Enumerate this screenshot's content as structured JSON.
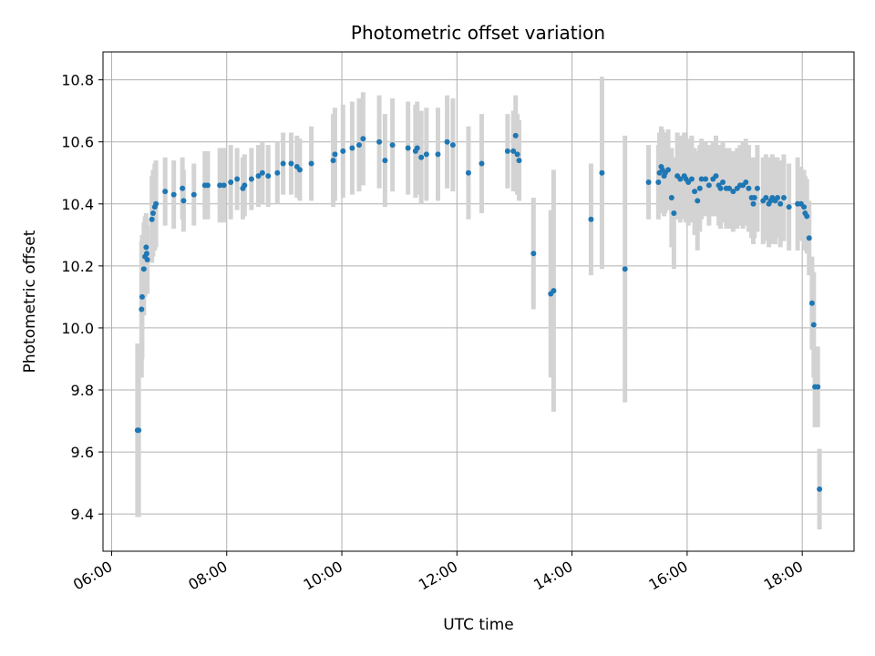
{
  "chart_data": {
    "type": "scatter",
    "title": "Photometric offset variation",
    "xlabel": "UTC time",
    "ylabel": "Photometric offset",
    "x_unit": "hours UTC",
    "xlim": [
      5.85,
      18.9
    ],
    "ylim": [
      9.28,
      10.89
    ],
    "x_ticks": [
      6,
      8,
      10,
      12,
      14,
      16,
      18
    ],
    "x_tick_labels": [
      "06:00",
      "08:00",
      "10:00",
      "12:00",
      "14:00",
      "16:00",
      "18:00"
    ],
    "y_ticks": [
      9.4,
      9.6,
      9.8,
      10.0,
      10.2,
      10.4,
      10.6,
      10.8
    ],
    "y_tick_labels": [
      "9.4",
      "9.6",
      "9.8",
      "10.0",
      "10.2",
      "10.4",
      "10.6",
      "10.8"
    ],
    "grid": true,
    "legend": "none",
    "colors": {
      "points": "#1f77b4",
      "error_bars": "#d3d3d3",
      "grid": "#b0b0b0"
    },
    "series": [
      {
        "x": [
          6.45,
          6.47,
          6.52,
          6.53,
          6.56,
          6.58,
          6.6,
          6.61,
          6.62,
          6.7,
          6.72,
          6.75,
          6.77,
          6.93,
          7.08,
          7.23,
          7.25,
          7.43,
          7.62,
          7.67,
          7.88,
          7.95,
          8.07,
          8.18,
          8.28,
          8.31,
          8.43,
          8.55,
          8.62,
          8.72,
          8.88,
          8.98,
          9.12,
          9.22,
          9.27,
          9.47,
          9.85,
          9.88,
          10.02,
          10.18,
          10.3,
          10.37,
          10.65,
          10.75,
          10.88,
          11.15,
          11.28,
          11.31,
          11.38,
          11.47,
          11.67,
          11.83,
          11.93,
          12.2,
          12.43,
          12.88,
          12.98,
          13.02,
          13.05,
          13.08,
          13.33,
          13.63,
          13.68,
          14.33,
          14.52,
          14.92,
          15.33,
          15.5,
          15.52,
          15.55,
          15.57,
          15.6,
          15.62,
          15.67,
          15.73,
          15.77,
          15.83,
          15.88,
          15.95,
          15.98,
          16.02,
          16.08,
          16.13,
          16.18,
          16.22,
          16.25,
          16.32,
          16.38,
          16.45,
          16.5,
          16.55,
          16.58,
          16.62,
          16.68,
          16.73,
          16.8,
          16.87,
          16.92,
          16.97,
          17.02,
          17.07,
          17.12,
          17.15,
          17.17,
          17.22,
          17.32,
          17.37,
          17.42,
          17.45,
          17.48,
          17.53,
          17.57,
          17.62,
          17.68,
          17.77,
          17.92,
          17.98,
          18.03,
          18.05,
          18.08,
          18.12,
          18.17,
          18.2,
          18.22,
          18.27,
          18.3
        ],
        "y": [
          9.67,
          9.67,
          10.06,
          10.1,
          10.19,
          10.23,
          10.26,
          10.24,
          10.22,
          10.35,
          10.37,
          10.39,
          10.4,
          10.44,
          10.43,
          10.45,
          10.41,
          10.43,
          10.46,
          10.46,
          10.46,
          10.46,
          10.47,
          10.48,
          10.45,
          10.46,
          10.48,
          10.49,
          10.5,
          10.49,
          10.5,
          10.53,
          10.53,
          10.52,
          10.51,
          10.53,
          10.54,
          10.56,
          10.57,
          10.58,
          10.59,
          10.61,
          10.6,
          10.54,
          10.59,
          10.58,
          10.57,
          10.58,
          10.55,
          10.56,
          10.56,
          10.6,
          10.59,
          10.5,
          10.53,
          10.57,
          10.57,
          10.62,
          10.56,
          10.54,
          10.24,
          10.11,
          10.12,
          10.35,
          10.5,
          10.19,
          10.47,
          10.47,
          10.5,
          10.52,
          10.51,
          10.49,
          10.5,
          10.51,
          10.42,
          10.37,
          10.49,
          10.48,
          10.49,
          10.48,
          10.47,
          10.48,
          10.44,
          10.41,
          10.45,
          10.48,
          10.48,
          10.46,
          10.48,
          10.49,
          10.46,
          10.45,
          10.47,
          10.45,
          10.45,
          10.44,
          10.45,
          10.46,
          10.46,
          10.47,
          10.45,
          10.42,
          10.4,
          10.42,
          10.45,
          10.41,
          10.42,
          10.4,
          10.41,
          10.42,
          10.41,
          10.42,
          10.4,
          10.42,
          10.39,
          10.4,
          10.4,
          10.39,
          10.37,
          10.36,
          10.29,
          10.08,
          10.01,
          9.81,
          9.81,
          9.48
        ],
        "error": [
          0.28,
          0.28,
          0.22,
          0.2,
          0.15,
          0.13,
          0.11,
          0.11,
          0.11,
          0.14,
          0.14,
          0.14,
          0.14,
          0.11,
          0.11,
          0.1,
          0.1,
          0.1,
          0.11,
          0.11,
          0.12,
          0.12,
          0.12,
          0.1,
          0.1,
          0.1,
          0.1,
          0.1,
          0.1,
          0.1,
          0.1,
          0.1,
          0.1,
          0.1,
          0.1,
          0.12,
          0.15,
          0.15,
          0.15,
          0.15,
          0.15,
          0.15,
          0.15,
          0.15,
          0.15,
          0.15,
          0.15,
          0.15,
          0.15,
          0.15,
          0.15,
          0.15,
          0.15,
          0.15,
          0.16,
          0.12,
          0.13,
          0.13,
          0.13,
          0.13,
          0.18,
          0.27,
          0.39,
          0.18,
          0.31,
          0.43,
          0.12,
          0.12,
          0.13,
          0.13,
          0.13,
          0.13,
          0.13,
          0.13,
          0.16,
          0.18,
          0.14,
          0.14,
          0.14,
          0.14,
          0.14,
          0.14,
          0.14,
          0.16,
          0.14,
          0.13,
          0.12,
          0.13,
          0.12,
          0.13,
          0.13,
          0.13,
          0.13,
          0.13,
          0.13,
          0.13,
          0.13,
          0.13,
          0.14,
          0.14,
          0.14,
          0.13,
          0.13,
          0.13,
          0.14,
          0.14,
          0.14,
          0.14,
          0.14,
          0.14,
          0.14,
          0.13,
          0.14,
          0.14,
          0.14,
          0.15,
          0.12,
          0.12,
          0.12,
          0.12,
          0.12,
          0.15,
          0.17,
          0.13,
          0.13,
          0.13
        ]
      }
    ]
  }
}
